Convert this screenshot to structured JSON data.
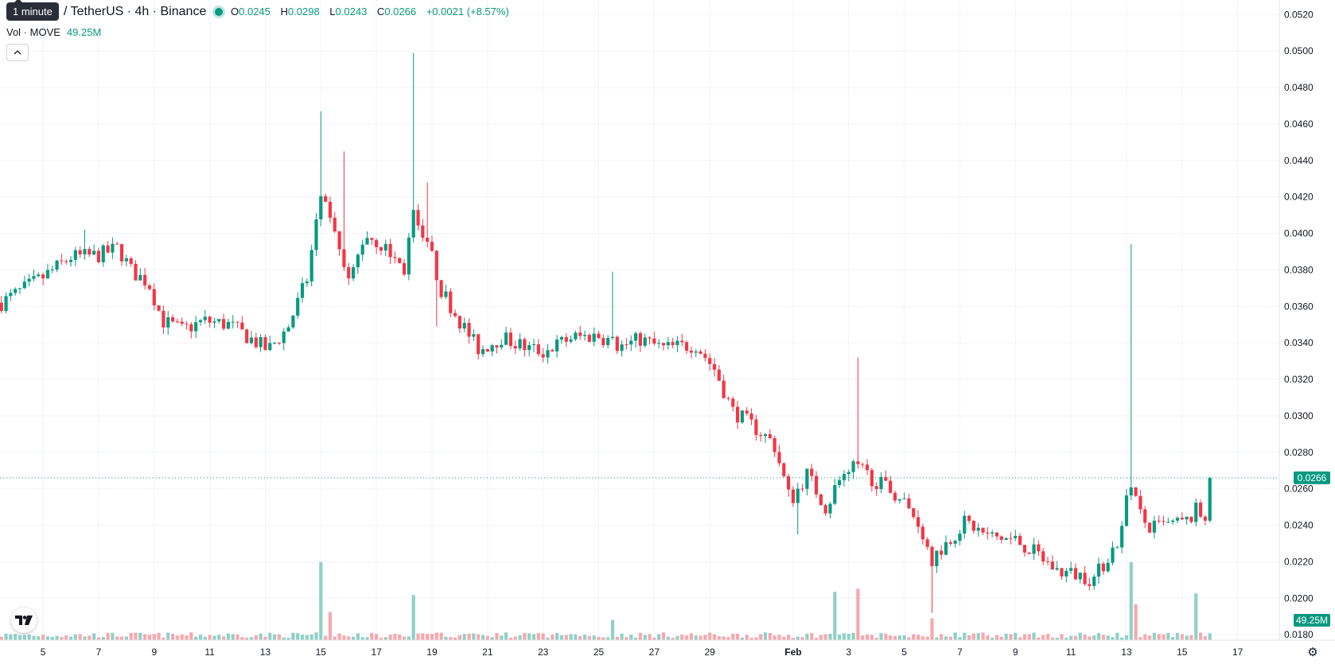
{
  "header": {
    "timeframe_tooltip": "1 minute",
    "symbol": "/ TetherUS · 4h · Binance",
    "ohlc": [
      {
        "label": "O",
        "value": "0.0245"
      },
      {
        "label": "H",
        "value": "0.0298"
      },
      {
        "label": "L",
        "value": "0.0243"
      },
      {
        "label": "C",
        "value": "0.0266"
      },
      {
        "label": "",
        "value": "+0.0021 (+8.57%)"
      }
    ],
    "volume_label": "Vol · MOVE",
    "volume_value": "49.25M"
  },
  "colors": {
    "up": "#089981",
    "down": "#f23645",
    "up_vol": "#8fd1c6",
    "down_vol": "#f7a8ad",
    "grid": "#f0f3fa",
    "text": "#131722"
  },
  "icons": {
    "collapse": "chevron-up-icon",
    "logo": "tradingview-logo-icon",
    "settings": "gear-icon"
  },
  "chart_data": {
    "type": "candlestick",
    "title": "/ TetherUS · 4h · Binance",
    "ylim": [
      0.0177,
      0.0528
    ],
    "y_ticks": [
      "0.0520",
      "0.0500",
      "0.0480",
      "0.0460",
      "0.0440",
      "0.0420",
      "0.0400",
      "0.0380",
      "0.0360",
      "0.0340",
      "0.0320",
      "0.0300",
      "0.0280",
      "0.0260",
      "0.0240",
      "0.0220",
      "0.0200",
      "0.0180"
    ],
    "x_ticks": [
      {
        "label": "5",
        "day": 5
      },
      {
        "label": "7",
        "day": 7
      },
      {
        "label": "9",
        "day": 9
      },
      {
        "label": "11",
        "day": 11
      },
      {
        "label": "13",
        "day": 13
      },
      {
        "label": "15",
        "day": 15
      },
      {
        "label": "17",
        "day": 17
      },
      {
        "label": "19",
        "day": 19
      },
      {
        "label": "21",
        "day": 21
      },
      {
        "label": "23",
        "day": 23
      },
      {
        "label": "25",
        "day": 25
      },
      {
        "label": "27",
        "day": 27
      },
      {
        "label": "29",
        "day": 29
      },
      {
        "label": "Feb",
        "day": 32
      },
      {
        "label": "3",
        "day": 34
      },
      {
        "label": "5",
        "day": 36
      },
      {
        "label": "7",
        "day": 38
      },
      {
        "label": "9",
        "day": 40
      },
      {
        "label": "11",
        "day": 42
      },
      {
        "label": "13",
        "day": 44
      },
      {
        "label": "15",
        "day": 46
      },
      {
        "label": "17",
        "day": 48
      }
    ],
    "x_range": [
      3.45,
      49.5
    ],
    "last_price_label": "0.0266",
    "last_price": 0.0266,
    "volume_label": "49.25M",
    "volume_max": 1.0,
    "anchors": [
      [
        3.5,
        0.0362
      ],
      [
        5.0,
        0.0376
      ],
      [
        6.0,
        0.0387
      ],
      [
        7.0,
        0.0388
      ],
      [
        7.7,
        0.0392
      ],
      [
        8.2,
        0.0379
      ],
      [
        8.8,
        0.0373
      ],
      [
        9.3,
        0.0352
      ],
      [
        10.0,
        0.0347
      ],
      [
        10.8,
        0.0352
      ],
      [
        11.7,
        0.035
      ],
      [
        12.5,
        0.0342
      ],
      [
        13.1,
        0.0336
      ],
      [
        13.8,
        0.0348
      ],
      [
        14.5,
        0.0375
      ],
      [
        15.0,
        0.0421
      ],
      [
        15.4,
        0.0402
      ],
      [
        16.0,
        0.0372
      ],
      [
        16.6,
        0.04
      ],
      [
        17.3,
        0.0392
      ],
      [
        18.0,
        0.038
      ],
      [
        18.3,
        0.041
      ],
      [
        18.8,
        0.0398
      ],
      [
        19.3,
        0.037
      ],
      [
        20.0,
        0.0352
      ],
      [
        20.7,
        0.0336
      ],
      [
        21.5,
        0.0343
      ],
      [
        22.3,
        0.0338
      ],
      [
        23.0,
        0.0335
      ],
      [
        24.0,
        0.0343
      ],
      [
        25.0,
        0.0344
      ],
      [
        25.8,
        0.0338
      ],
      [
        26.5,
        0.0342
      ],
      [
        27.3,
        0.0337
      ],
      [
        28.5,
        0.0339
      ],
      [
        29.2,
        0.0325
      ],
      [
        29.8,
        0.0303
      ],
      [
        30.5,
        0.0295
      ],
      [
        31.3,
        0.0285
      ],
      [
        31.9,
        0.0253
      ],
      [
        32.5,
        0.0268
      ],
      [
        33.2,
        0.0249
      ],
      [
        33.7,
        0.0268
      ],
      [
        34.3,
        0.0272
      ],
      [
        35.0,
        0.0264
      ],
      [
        35.8,
        0.0256
      ],
      [
        36.5,
        0.0242
      ],
      [
        37.0,
        0.0222
      ],
      [
        37.5,
        0.023
      ],
      [
        38.2,
        0.0242
      ],
      [
        39.0,
        0.0234
      ],
      [
        40.0,
        0.0232
      ],
      [
        40.8,
        0.0224
      ],
      [
        41.5,
        0.0215
      ],
      [
        42.5,
        0.0212
      ],
      [
        42.8,
        0.021
      ],
      [
        43.3,
        0.0222
      ],
      [
        43.8,
        0.0234
      ],
      [
        44.1,
        0.0266
      ],
      [
        44.4,
        0.0248
      ],
      [
        44.8,
        0.0238
      ],
      [
        45.5,
        0.024
      ],
      [
        46.2,
        0.0242
      ],
      [
        46.6,
        0.025
      ],
      [
        46.9,
        0.0245
      ],
      [
        47.1,
        0.0266
      ]
    ],
    "spikes": [
      {
        "day": 6.5,
        "high": 0.0402
      },
      {
        "day": 15.0,
        "high": 0.0467
      },
      {
        "day": 15.8,
        "high": 0.0445
      },
      {
        "day": 18.4,
        "high": 0.0499
      },
      {
        "day": 18.8,
        "high": 0.0428
      },
      {
        "day": 19.1,
        "low": 0.0349
      },
      {
        "day": 25.5,
        "high": 0.0379
      },
      {
        "day": 32.1,
        "low": 0.0235
      },
      {
        "day": 34.4,
        "high": 0.0332
      },
      {
        "day": 37.0,
        "low": 0.0192
      },
      {
        "day": 44.1,
        "high": 0.0394
      },
      {
        "day": 47.1,
        "high": 0.0298
      }
    ],
    "volume_spikes": [
      {
        "day": 15.0,
        "v": 1.0
      },
      {
        "day": 15.4,
        "v": 0.36
      },
      {
        "day": 18.4,
        "v": 0.58
      },
      {
        "day": 25.5,
        "v": 0.26
      },
      {
        "day": 33.5,
        "v": 0.62
      },
      {
        "day": 34.4,
        "v": 0.66
      },
      {
        "day": 37.0,
        "v": 0.28
      },
      {
        "day": 44.1,
        "v": 1.0
      },
      {
        "day": 44.3,
        "v": 0.46
      },
      {
        "day": 46.5,
        "v": 0.6
      },
      {
        "day": 47.1,
        "v": 0.38
      }
    ]
  }
}
